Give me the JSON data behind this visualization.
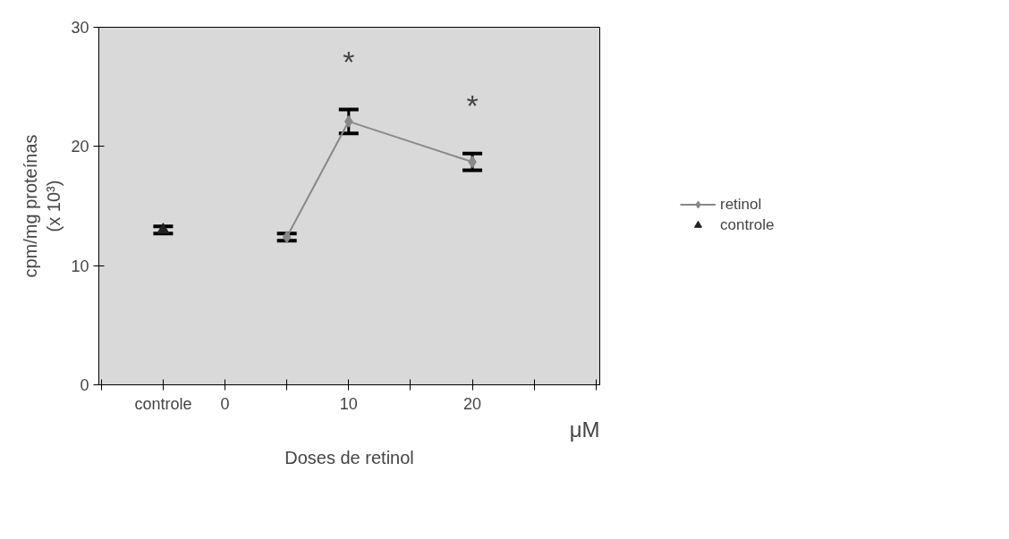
{
  "chart_data": {
    "type": "line",
    "xlabel": "Doses de retinol",
    "ylabel": "cpm/mg proteínas\n(x 10³)",
    "xlim": [
      -10.2,
      30.3
    ],
    "ylim": [
      0,
      30
    ],
    "xticks": [
      {
        "value": -10,
        "label": null
      },
      {
        "value": -5,
        "label": "controle"
      },
      0,
      {
        "value": 5,
        "label": null
      },
      10,
      {
        "value": 15,
        "label": null
      },
      20,
      {
        "value": 25,
        "label": null
      },
      {
        "value": 30,
        "label": null
      }
    ],
    "yticks": [
      0,
      10,
      20,
      30
    ],
    "series": [
      {
        "name": "retinol",
        "color": "#888888",
        "x": [
          5,
          10,
          20
        ],
        "values": [
          12.4,
          22.1,
          18.7
        ],
        "errors": [
          0.3,
          1.0,
          0.7
        ],
        "marker": "diamond"
      },
      {
        "name": "controle",
        "color": "#222222",
        "type": "scatter",
        "x": [
          -5
        ],
        "values": [
          13.0
        ],
        "errors": [
          0.3
        ],
        "marker": "triangle"
      }
    ],
    "annotations": [
      "*",
      "*",
      "μM"
    ],
    "legend": "right",
    "grid": false,
    "line_style": "solid"
  }
}
